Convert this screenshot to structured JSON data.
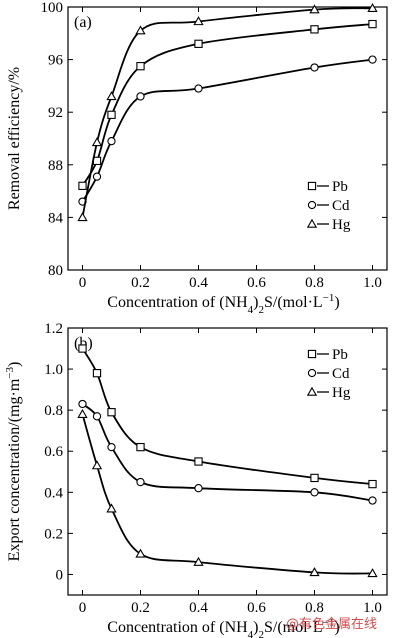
{
  "watermark": "@有色金属在线",
  "chart_data": [
    {
      "type": "line",
      "panel_label": "(a)",
      "xlabel": "Concentration of (NH",
      "xlabel_sub": "4",
      "xlabel_mid": ")",
      "xlabel_sub2": "2",
      "xlabel_tail": "S/(mol·L",
      "xlabel_sup": "−1",
      "xlabel_end": ")",
      "ylabel": "Removal efficiency/%",
      "xlim": [
        -0.05,
        1.05
      ],
      "ylim": [
        80,
        100
      ],
      "xticks": [
        0,
        0.2,
        0.4,
        0.6,
        0.8,
        1.0
      ],
      "xtick_labels": [
        "0",
        "0.2",
        "0.4",
        "0.6",
        "0.8",
        "1.0"
      ],
      "yticks": [
        80,
        84,
        88,
        92,
        96,
        100
      ],
      "ytick_labels": [
        "80",
        "84",
        "88",
        "92",
        "96",
        "100"
      ],
      "legend_position": "right",
      "series": [
        {
          "name": "Pb",
          "marker": "square",
          "x": [
            0,
            0.05,
            0.1,
            0.2,
            0.4,
            0.8,
            1.0
          ],
          "y": [
            86.4,
            88.3,
            91.8,
            95.5,
            97.2,
            98.3,
            98.7
          ]
        },
        {
          "name": "Cd",
          "marker": "circle",
          "x": [
            0,
            0.05,
            0.1,
            0.2,
            0.4,
            0.8,
            1.0
          ],
          "y": [
            85.2,
            87.1,
            89.8,
            93.2,
            93.8,
            95.4,
            96.0
          ]
        },
        {
          "name": "Hg",
          "marker": "triangle",
          "x": [
            0,
            0.05,
            0.1,
            0.2,
            0.4,
            0.8,
            1.0
          ],
          "y": [
            84.0,
            89.7,
            93.2,
            98.2,
            98.9,
            99.8,
            99.9
          ]
        }
      ]
    },
    {
      "type": "line",
      "panel_label": "(b)",
      "xlabel": "Concentration of (NH",
      "xlabel_sub": "4",
      "xlabel_mid": ")",
      "xlabel_sub2": "2",
      "xlabel_tail": "S/(mol·L",
      "xlabel_sup": "−1",
      "xlabel_end": ")",
      "ylabel": "Export concentration/(mg·m",
      "ylabel_sup": "−3",
      "ylabel_end": ")",
      "xlim": [
        -0.05,
        1.05
      ],
      "ylim": [
        -0.1,
        1.2
      ],
      "xticks": [
        0,
        0.2,
        0.4,
        0.6,
        0.8,
        1.0
      ],
      "xtick_labels": [
        "0",
        "0.2",
        "0.4",
        "0.6",
        "0.8",
        "1.0"
      ],
      "yticks": [
        0,
        0.2,
        0.4,
        0.6,
        0.8,
        1.0,
        1.2
      ],
      "ytick_labels": [
        "0",
        "0.2",
        "0.4",
        "0.6",
        "0.8",
        "1.0",
        "1.2"
      ],
      "legend_position": "top-right",
      "series": [
        {
          "name": "Pb",
          "marker": "square",
          "x": [
            0,
            0.05,
            0.1,
            0.2,
            0.4,
            0.8,
            1.0
          ],
          "y": [
            1.1,
            0.98,
            0.79,
            0.62,
            0.55,
            0.47,
            0.44
          ]
        },
        {
          "name": "Cd",
          "marker": "circle",
          "x": [
            0,
            0.05,
            0.1,
            0.2,
            0.4,
            0.8,
            1.0
          ],
          "y": [
            0.83,
            0.77,
            0.62,
            0.45,
            0.42,
            0.4,
            0.36
          ]
        },
        {
          "name": "Hg",
          "marker": "triangle",
          "x": [
            0,
            0.05,
            0.1,
            0.2,
            0.4,
            0.8,
            1.0
          ],
          "y": [
            0.78,
            0.53,
            0.32,
            0.1,
            0.06,
            0.01,
            0.005
          ]
        }
      ]
    }
  ]
}
